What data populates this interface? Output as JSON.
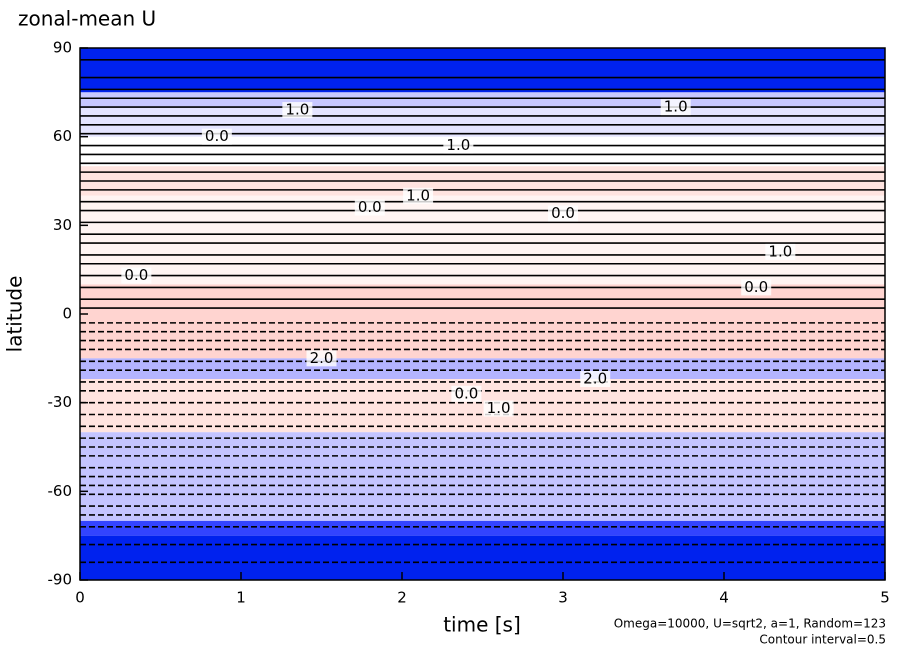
{
  "chart_data": {
    "type": "contour",
    "title": "zonal-mean U",
    "x_label": "time [s]",
    "y_label": "latitude",
    "notes": [
      "Omega=10000, U=sqrt2, a=1, Random=123",
      "Contour interval=0.5"
    ],
    "xlim": [
      0,
      5
    ],
    "xticks": [
      0,
      1,
      2,
      3,
      4,
      5
    ],
    "ylim": [
      -90,
      90
    ],
    "yticks": [
      -90,
      -60,
      -30,
      0,
      30,
      60,
      90
    ],
    "bands": [
      {
        "y0": 75,
        "y1": 90,
        "color": "#0022ee"
      },
      {
        "y0": 70,
        "y1": 75,
        "color": "#c8c8ff"
      },
      {
        "y0": 60,
        "y1": 70,
        "color": "#e4e4ff"
      },
      {
        "y0": 40,
        "y1": 50,
        "color": "#ffe4e0"
      },
      {
        "y0": 10,
        "y1": 40,
        "color": "#fff4f2"
      },
      {
        "y0": -15,
        "y1": 10,
        "color": "#ffd4d0"
      },
      {
        "y0": -22,
        "y1": -15,
        "color": "#b4b4ff"
      },
      {
        "y0": -40,
        "y1": -22,
        "color": "#ffe4e0"
      },
      {
        "y0": -70,
        "y1": -40,
        "color": "#c4c4ff"
      },
      {
        "y0": -75,
        "y1": -70,
        "color": "#3344ff"
      },
      {
        "y0": -90,
        "y1": -75,
        "color": "#0022ee"
      }
    ],
    "contours": [
      86,
      80,
      76,
      73,
      70,
      67,
      64,
      61,
      57,
      54,
      51,
      48,
      45,
      42,
      38,
      35,
      31,
      27,
      24,
      20,
      17,
      13,
      9,
      5,
      2,
      -3,
      -6,
      -9,
      -12,
      -16,
      -19,
      -23,
      -26,
      -30,
      -34,
      -38,
      -42,
      -45,
      -48,
      -52,
      -55,
      -58,
      -61,
      -65,
      -68,
      -72,
      -78,
      -84
    ],
    "contour_labels": [
      {
        "x": 0.35,
        "y": 13,
        "text": "0.0"
      },
      {
        "x": 1.8,
        "y": 36,
        "text": "0.0"
      },
      {
        "x": 2.1,
        "y": 40,
        "text": "1.0"
      },
      {
        "x": 3.0,
        "y": 34,
        "text": "0.0"
      },
      {
        "x": 1.35,
        "y": 69,
        "text": "1.0"
      },
      {
        "x": 2.35,
        "y": 57,
        "text": "1.0"
      },
      {
        "x": 1.5,
        "y": -15,
        "text": "2.0"
      },
      {
        "x": 2.4,
        "y": -27,
        "text": "0.0"
      },
      {
        "x": 2.6,
        "y": -32,
        "text": "1.0"
      },
      {
        "x": 0.85,
        "y": 60,
        "text": "0.0"
      },
      {
        "x": 3.7,
        "y": 70,
        "text": "1.0"
      },
      {
        "x": 4.35,
        "y": 21,
        "text": "1.0"
      },
      {
        "x": 3.2,
        "y": -22,
        "text": "2.0"
      },
      {
        "x": 4.2,
        "y": 9,
        "text": "0.0"
      }
    ]
  }
}
